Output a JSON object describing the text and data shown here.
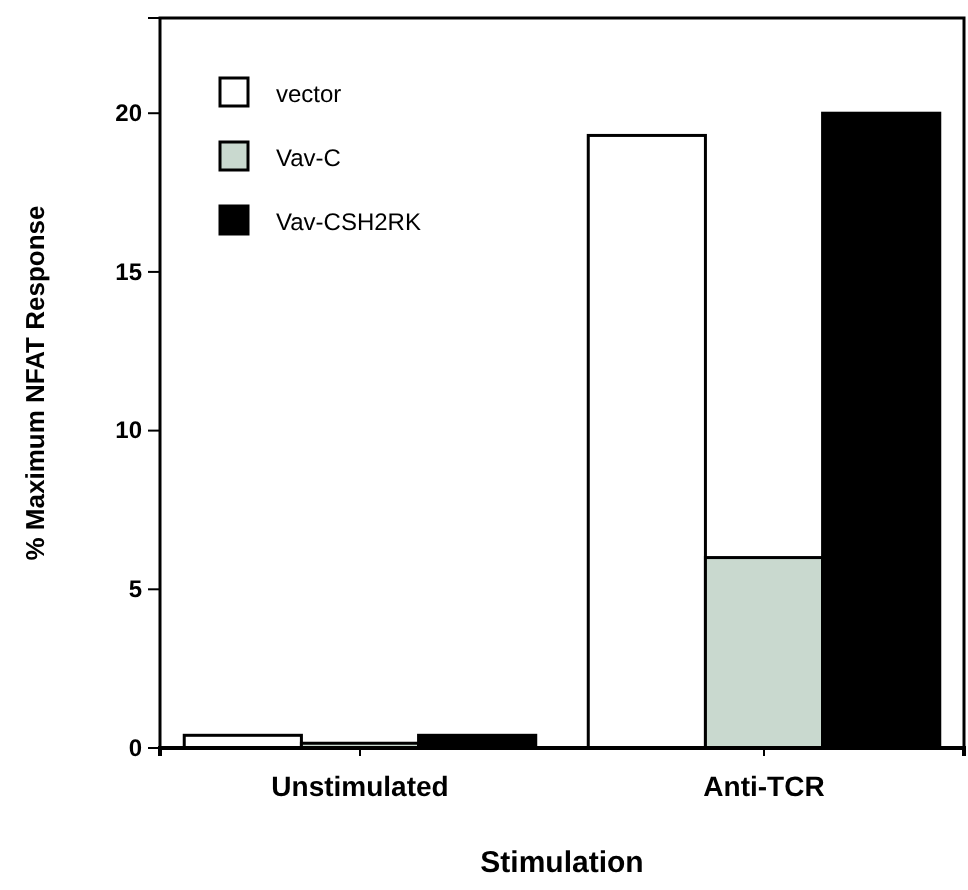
{
  "chart_data": {
    "type": "bar",
    "xlabel": "Stimulation",
    "ylabel": "% Maximum NFAT Response",
    "categories": [
      "Unstimulated",
      "Anti-TCR"
    ],
    "series": [
      {
        "name": "vector",
        "color": "#ffffff",
        "values": [
          0.4,
          19.3
        ]
      },
      {
        "name": "Vav-C",
        "color": "#c9d9cf",
        "values": [
          0.15,
          6.0
        ]
      },
      {
        "name": "Vav-CSH2RK",
        "color": "#000000",
        "values": [
          0.4,
          20.0
        ]
      }
    ],
    "ylim": [
      0,
      23
    ],
    "yticks": [
      0,
      5,
      10,
      15,
      20
    ],
    "grid": false,
    "legend": "top left"
  }
}
